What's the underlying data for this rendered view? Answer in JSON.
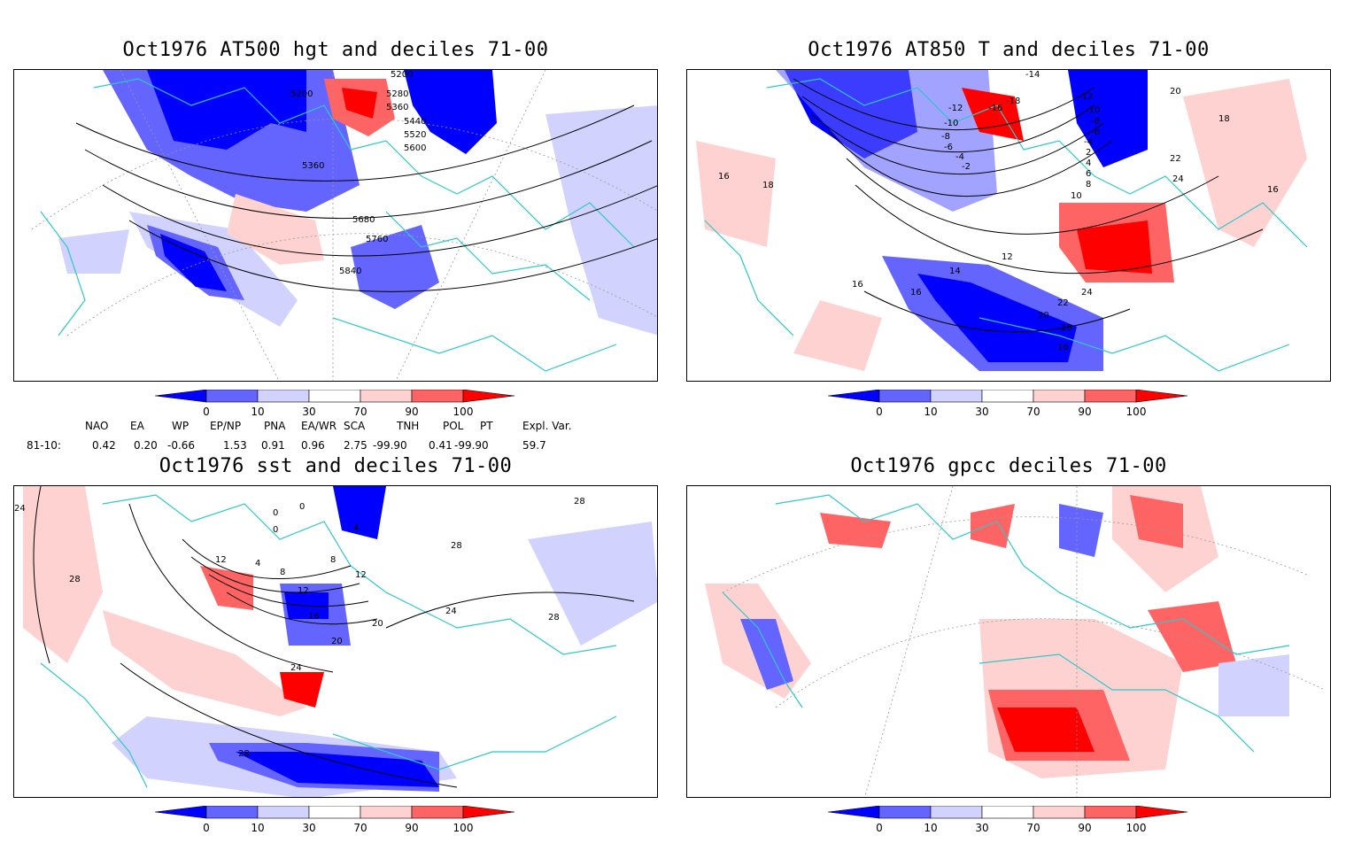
{
  "panels": [
    {
      "title": "Oct1976 AT500 hgt and deciles 71-00",
      "contour_labels": [
        "5200",
        "5200",
        "5280",
        "5360",
        "5440",
        "5520",
        "5600",
        "5360",
        "5680",
        "5760",
        "5840"
      ]
    },
    {
      "title": "Oct1976 AT850 T and deciles 71-00",
      "contour_labels": [
        "-14",
        "-12",
        "-10",
        "-8",
        "-6",
        "-4",
        "-2",
        "-16",
        "-18",
        "-12",
        "-10",
        "-8",
        "-6",
        "-4",
        "2",
        "4",
        "6",
        "8",
        "10",
        "12",
        "14",
        "16",
        "16",
        "16",
        "18",
        "18",
        "20",
        "20",
        "22",
        "22",
        "24",
        "24",
        "16",
        "18",
        "16"
      ]
    },
    {
      "title": "Oct1976 sst and deciles 71-00",
      "contour_labels": [
        "24",
        "28",
        "0",
        "0",
        "0",
        "4",
        "8",
        "12",
        "4",
        "8",
        "12",
        "12",
        "16",
        "20",
        "24",
        "28",
        "20",
        "24",
        "28",
        "28",
        "28"
      ]
    },
    {
      "title": "Oct1976 gpcc deciles 71-00",
      "contour_labels": []
    }
  ],
  "colorbar": {
    "ticks": [
      "0",
      "10",
      "30",
      "70",
      "90",
      "100"
    ],
    "colors": [
      "#0000ff",
      "#6464ff",
      "#d2d2ff",
      "#ffffff",
      "#ffd2d2",
      "#ff6464",
      "#ff0000"
    ]
  },
  "indices": {
    "headers": [
      "NAO",
      "EA",
      "WP",
      "EP/NP",
      "PNA",
      "EA/WR",
      "SCA",
      "TNH",
      "POL",
      "PT",
      "Expl. Var."
    ],
    "row_label": "81-10:",
    "values": [
      "0.42",
      "0.20",
      "-0.66",
      "1.53",
      "0.91",
      "0.96",
      "2.75",
      "-99.90",
      "0.41",
      "-99.90",
      "59.7"
    ]
  },
  "colors": {
    "coast": "#2ec8c8",
    "deep_blue": "#0000ff",
    "mid_blue": "#6464ff",
    "light_blue": "#d2d2ff",
    "light_red": "#ffd2d2",
    "mid_red": "#ff6464",
    "deep_red": "#ff0000"
  }
}
